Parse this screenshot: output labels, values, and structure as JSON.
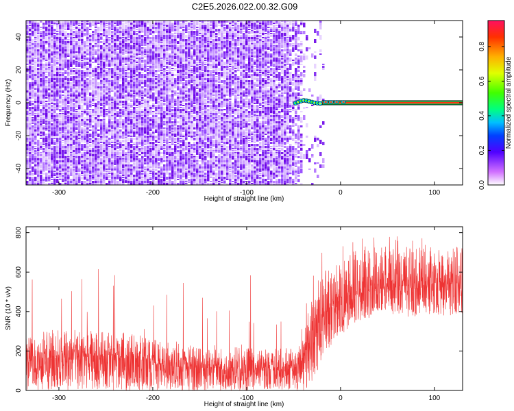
{
  "figure": {
    "title": "C2E5.2026.022.00.32.G09"
  },
  "chart_data": [
    {
      "type": "heatmap",
      "xlabel": "Height of straight line (km)",
      "ylabel": "Frequency (Hz)",
      "xlim": [
        -335,
        130
      ],
      "ylim": [
        -50,
        50
      ],
      "xticks": [
        -300,
        -200,
        -100,
        0,
        100
      ],
      "yticks": [
        -40,
        -20,
        0,
        20,
        40
      ],
      "colorbar": {
        "label": "Normalized spectral amplitude",
        "range": [
          0.0,
          0.95
        ],
        "ticks": [
          0.0,
          0.2,
          0.4,
          0.6,
          0.8
        ]
      },
      "regions": [
        {
          "x_range": [
            -335,
            -48
          ],
          "pattern": "broadband noise",
          "amplitude": 0.12
        },
        {
          "x_range": [
            -48,
            -20
          ],
          "pattern": "signal line near 0 Hz, wandering",
          "amplitude": 0.5
        },
        {
          "x_range": [
            -20,
            130
          ],
          "pattern": "signal line at 0 Hz",
          "amplitude": 0.95
        }
      ],
      "grid": false
    },
    {
      "type": "line",
      "xlabel": "Height of straight line (km)",
      "ylabel": "SNR (10 * v/v)",
      "xlim": [
        -335,
        130
      ],
      "ylim": [
        0,
        830
      ],
      "xticks": [
        -300,
        -200,
        -100,
        0,
        100
      ],
      "yticks": [
        0,
        200,
        400,
        600,
        800
      ],
      "color": "#ee3333",
      "envelope": {
        "x": [
          -335,
          -300,
          -250,
          -220,
          -200,
          -180,
          -150,
          -120,
          -100,
          -80,
          -60,
          -45,
          -38,
          -30,
          -20,
          -10,
          0,
          10,
          20,
          40,
          60,
          80,
          100,
          130
        ],
        "low": [
          0,
          0,
          0,
          0,
          0,
          0,
          0,
          0,
          0,
          0,
          0,
          0,
          0,
          50,
          150,
          220,
          280,
          320,
          350,
          380,
          380,
          370,
          380,
          380
        ],
        "mean": [
          160,
          165,
          170,
          165,
          140,
          120,
          115,
          112,
          110,
          108,
          107,
          110,
          180,
          300,
          360,
          420,
          450,
          470,
          490,
          520,
          530,
          530,
          540,
          540
        ],
        "high": [
          300,
          310,
          300,
          290,
          260,
          240,
          230,
          230,
          220,
          220,
          220,
          220,
          350,
          520,
          600,
          620,
          660,
          700,
          720,
          730,
          730,
          720,
          730,
          740
        ]
      },
      "grid": false
    }
  ]
}
